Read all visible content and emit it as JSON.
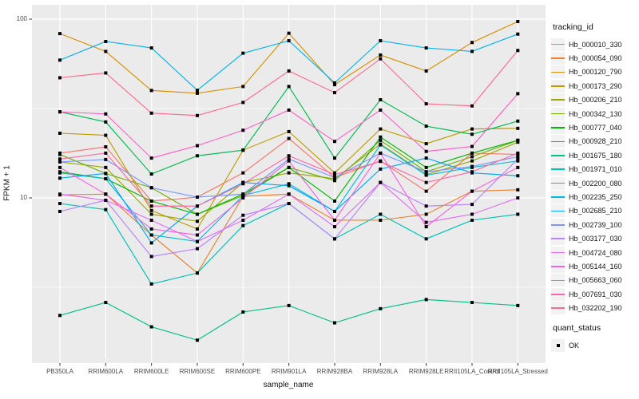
{
  "figure": {
    "background": "#FFFFFF",
    "panel_bg": "#EBEBEB",
    "grid_color": "#FFFFFF",
    "tick_color": "#333333",
    "tick_label_color": "#4D4D4D"
  },
  "axes": {
    "x_title": "sample_name",
    "y_title": "FPKM + 1",
    "y_tick_labels": [
      "100",
      "10"
    ],
    "y_tick_values": [
      100,
      10
    ]
  },
  "legend": {
    "tracking_title": "tracking_id",
    "quant_title": "quant_status",
    "quant_items": [
      {
        "label": "OK",
        "shape": "filled-square",
        "color": "#000000"
      }
    ]
  },
  "chart_data": {
    "type": "line",
    "x_type": "categorical",
    "y_scale": "log10",
    "xlabel": "sample_name",
    "ylabel": "FPKM + 1",
    "ylim": [
      1.19,
      115
    ],
    "y_major_gridlines": [
      10,
      100
    ],
    "y_minor_gridlines": [
      3.162,
      31.623
    ],
    "grid": true,
    "legend_position": "right",
    "point_marker": "filled-square",
    "point_color": "#000000",
    "categories": [
      "PB350LA",
      "RRIM600LA",
      "RRIM600LE",
      "RRIM600SE",
      "RRIM600PE",
      "RRIM901LA",
      "RRIM928BA",
      "RRIM928LA",
      "RRIM928LE",
      "RRII105LA_Control",
      "RRII105LA_Stressed"
    ],
    "series": [
      {
        "name": "Hb_000010_330",
        "color": "#F8766D",
        "values": [
          17.8,
          19.3,
          9.6,
          10.1,
          13.8,
          21.5,
          13.0,
          16.1,
          10.9,
          17.8,
          17.5
        ]
      },
      {
        "name": "Hb_000054_090",
        "color": "#EA8331",
        "values": [
          10.4,
          10.5,
          6.2,
          3.8,
          10.2,
          10.5,
          7.5,
          7.5,
          8.1,
          10.9,
          11.1
        ]
      },
      {
        "name": "Hb_000120_790",
        "color": "#D89000",
        "values": [
          83,
          66,
          39.9,
          38.5,
          42,
          83.4,
          43,
          63,
          51.3,
          74,
          97
        ]
      },
      {
        "name": "Hb_000173_290",
        "color": "#BE9C00",
        "values": [
          23,
          22.4,
          8.5,
          6.7,
          18.5,
          23.5,
          13.8,
          24.3,
          20.1,
          24.3,
          24.5
        ]
      },
      {
        "name": "Hb_000206_210",
        "color": "#9CA700",
        "values": [
          15.9,
          14.8,
          8.1,
          7.4,
          12.2,
          13.8,
          12.8,
          20.0,
          13.5,
          16.1,
          20.5
        ]
      },
      {
        "name": "Hb_000342_130",
        "color": "#6FB000",
        "values": [
          17.5,
          13.7,
          11.4,
          8.1,
          10.3,
          14.8,
          12.5,
          21.0,
          14.0,
          17.0,
          21.0
        ]
      },
      {
        "name": "Hb_000777_040",
        "color": "#00B700",
        "values": [
          14.0,
          12.8,
          9.6,
          8.1,
          10.5,
          14.8,
          9.6,
          21.9,
          14.8,
          17.8,
          21.0
        ]
      },
      {
        "name": "Hb_000928_210",
        "color": "#00BC51",
        "values": [
          30.3,
          26.6,
          13.6,
          17.2,
          18.5,
          42,
          16.7,
          35.4,
          25.2,
          22.7,
          26.9
        ]
      },
      {
        "name": "Hb_001675_180",
        "color": "#00C08B",
        "values": [
          2.2,
          2.6,
          1.9,
          1.6,
          2.3,
          2.5,
          2.0,
          2.4,
          2.7,
          2.6,
          2.5
        ]
      },
      {
        "name": "Hb_001971_010",
        "color": "#00C0B8",
        "values": [
          9.3,
          8.6,
          3.3,
          3.8,
          7.0,
          9.3,
          5.9,
          8.1,
          5.9,
          7.5,
          8.1
        ]
      },
      {
        "name": "Hb_002200_080",
        "color": "#00BDD8",
        "values": [
          13.8,
          12.8,
          6.2,
          5.7,
          10.3,
          12.0,
          8.4,
          19.8,
          13.4,
          14.8,
          16.1
        ]
      },
      {
        "name": "Hb_002235_250",
        "color": "#00B4EF",
        "values": [
          59,
          75,
          69,
          40,
          64.5,
          75.7,
          44,
          75.7,
          69,
          66,
          82.5
        ]
      },
      {
        "name": "Hb_002685_210",
        "color": "#00A5FF",
        "values": [
          12.9,
          13.7,
          5.6,
          9.0,
          12.2,
          11.7,
          8.4,
          14.5,
          16.7,
          13.8,
          13.3
        ]
      },
      {
        "name": "Hb_002739_100",
        "color": "#7997FF",
        "values": [
          15.9,
          16.4,
          11.4,
          10.1,
          10.5,
          16.5,
          13.0,
          17.8,
          14.0,
          15.0,
          17.0
        ]
      },
      {
        "name": "Hb_003177_030",
        "color": "#B983FF",
        "values": [
          8.4,
          9.7,
          4.7,
          5.2,
          8.0,
          9.3,
          5.9,
          12.2,
          9.0,
          9.2,
          16.5
        ]
      },
      {
        "name": "Hb_004724_080",
        "color": "#E26EF7",
        "values": [
          10.5,
          9.7,
          7.5,
          5.7,
          7.5,
          10.5,
          6.9,
          12.2,
          7.3,
          8.1,
          10.0
        ]
      },
      {
        "name": "Hb_005144_160",
        "color": "#F863DF",
        "values": [
          14.8,
          10.5,
          6.7,
          6.2,
          10.0,
          16.1,
          7.5,
          17.8,
          6.9,
          10.9,
          14.8
        ]
      },
      {
        "name": "Hb_005663_060",
        "color": "#FF61C7",
        "values": [
          30.3,
          29.5,
          16.7,
          19.6,
          23.9,
          31,
          20.7,
          31,
          18.2,
          19.4,
          38.3
        ]
      },
      {
        "name": "Hb_007691_030",
        "color": "#FF68A5",
        "values": [
          16.5,
          17.8,
          9.0,
          9.0,
          12.0,
          17.2,
          13.5,
          16.0,
          12.2,
          14.0,
          17.8
        ]
      },
      {
        "name": "Hb_032202_190",
        "color": "#FF6C90",
        "values": [
          47,
          50,
          29.8,
          28.9,
          34.2,
          51.3,
          38.8,
          60,
          33.6,
          32.7,
          66.8
        ]
      }
    ]
  }
}
